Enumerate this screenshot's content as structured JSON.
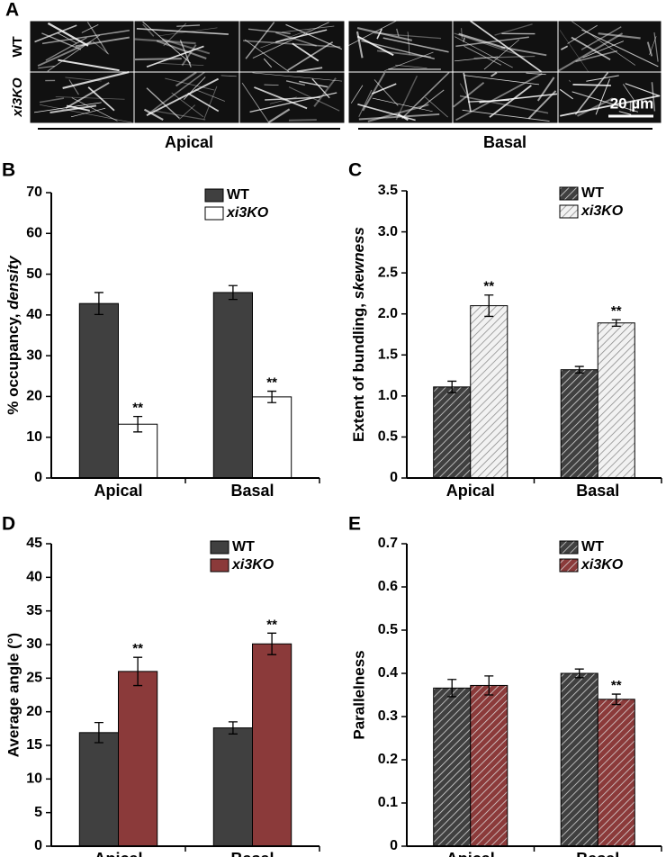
{
  "panel_a": {
    "label": "A",
    "rows": [
      "WT",
      "xi3KO"
    ],
    "scale_bar": "20 µm",
    "groups": [
      "Apical",
      "Basal"
    ]
  },
  "chart_data": [
    {
      "type": "bar",
      "panel_label": "B",
      "ylabel": [
        "% occupancy, ",
        "density"
      ],
      "categories": [
        "Apical",
        "Basal"
      ],
      "series": [
        {
          "name": "WT",
          "color": "#404040",
          "hatch": false,
          "values": [
            42.8,
            45.5
          ],
          "errors": [
            2.7,
            1.7
          ]
        },
        {
          "name": "xi3KO",
          "color": "#ffffff",
          "hatch": false,
          "values": [
            13.2,
            19.9
          ],
          "errors": [
            1.9,
            1.4
          ],
          "annotations": [
            "**",
            "**"
          ]
        }
      ],
      "ylim": [
        0,
        70
      ],
      "yticks": [
        0,
        10,
        20,
        30,
        40,
        50,
        60,
        70
      ],
      "legend": "top"
    },
    {
      "type": "bar",
      "panel_label": "C",
      "ylabel": [
        "Extent of bundling, ",
        "skewness"
      ],
      "categories": [
        "Apical",
        "Basal"
      ],
      "series": [
        {
          "name": "WT",
          "color": "#404040",
          "hatch": true,
          "values": [
            1.11,
            1.32
          ],
          "errors": [
            0.07,
            0.04
          ]
        },
        {
          "name": "xi3KO",
          "color": "#f2f2f2",
          "hatch": true,
          "values": [
            2.1,
            1.89
          ],
          "errors": [
            0.13,
            0.04
          ],
          "annotations": [
            "**",
            "**"
          ]
        }
      ],
      "ylim": [
        0,
        3.5
      ],
      "yticks": [
        0,
        0.5,
        {
          "value": 1,
          "label": "1.0"
        },
        1.5,
        {
          "value": 2,
          "label": "2.0"
        },
        2.5,
        {
          "value": 3,
          "label": "3.0"
        },
        3.5
      ],
      "legend": "top"
    },
    {
      "type": "bar",
      "panel_label": "D",
      "ylabel": "Average angle (°)",
      "categories": [
        "Apical",
        "Basal"
      ],
      "series": [
        {
          "name": "WT",
          "color": "#404040",
          "hatch": false,
          "values": [
            16.9,
            17.6
          ],
          "errors": [
            1.5,
            0.9
          ]
        },
        {
          "name": "xi3KO",
          "color": "#8b3a3a",
          "hatch": false,
          "values": [
            26.0,
            30.1
          ],
          "errors": [
            2.1,
            1.6
          ],
          "annotations": [
            "**",
            "**"
          ]
        }
      ],
      "ylim": [
        0,
        45
      ],
      "yticks": [
        0,
        5,
        10,
        15,
        20,
        25,
        30,
        35,
        40,
        45
      ],
      "legend": "top"
    },
    {
      "type": "bar",
      "panel_label": "E",
      "ylabel": "Parallelness",
      "categories": [
        "Apical",
        "Basal"
      ],
      "series": [
        {
          "name": "WT",
          "color": "#404040",
          "hatch": true,
          "values": [
            0.366,
            0.4
          ],
          "errors": [
            0.02,
            0.01
          ]
        },
        {
          "name": "xi3KO",
          "color": "#8b3a3a",
          "hatch": true,
          "values": [
            0.372,
            0.34
          ],
          "errors": [
            0.022,
            0.012
          ],
          "annotations": [
            null,
            "**"
          ]
        }
      ],
      "ylim": [
        0,
        0.7
      ],
      "yticks": [
        0,
        0.1,
        0.2,
        0.3,
        0.4,
        0.5,
        0.6,
        0.7
      ],
      "legend": "top"
    }
  ]
}
